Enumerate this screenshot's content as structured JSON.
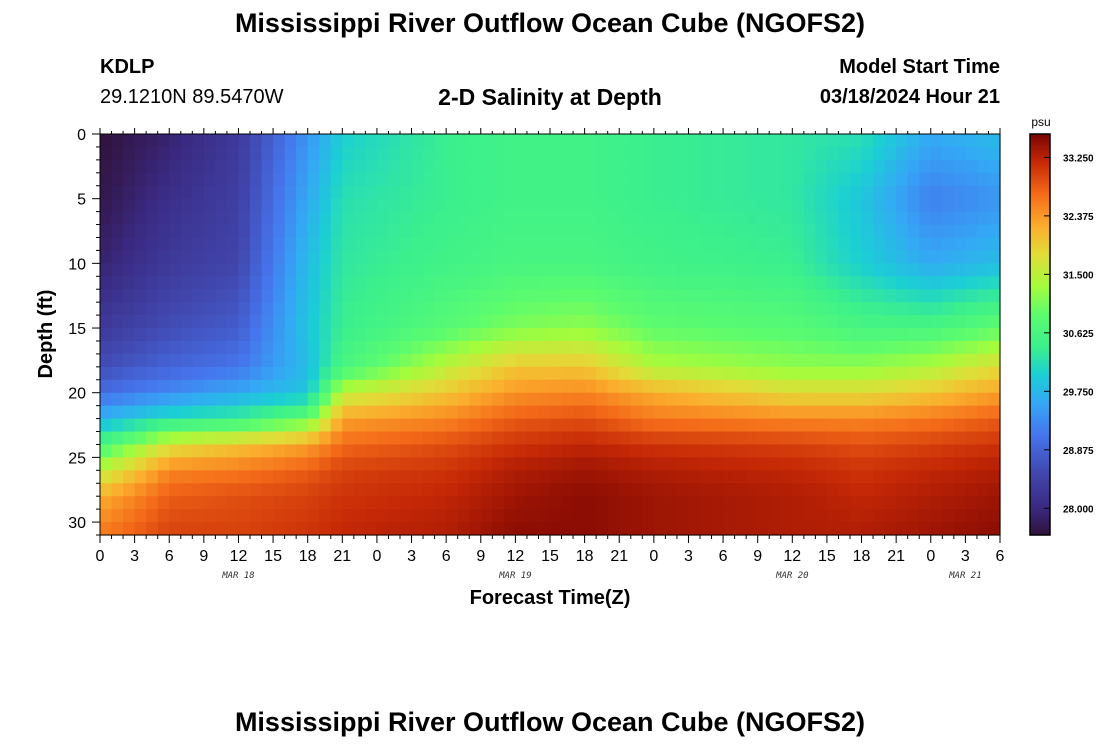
{
  "header": {
    "title": "Mississippi River Outflow Ocean Cube (NGOFS2)",
    "station_id": "KDLP",
    "station_coords": "29.1210N  89.5470W",
    "subtitle": "2-D Salinity at Depth",
    "model_start_label": "Model Start Time",
    "model_start_time": "03/18/2024 Hour 21"
  },
  "footer": {
    "title": "Mississippi River Outflow Ocean Cube (NGOFS2)"
  },
  "chart_data": {
    "type": "heatmap",
    "xlabel": "Forecast Time(Z)",
    "ylabel": "Depth (ft)",
    "x_hours_range": [
      0,
      78
    ],
    "x_tick_labels": [
      "0",
      "3",
      "6",
      "9",
      "12",
      "15",
      "18",
      "21",
      "0",
      "3",
      "6",
      "9",
      "12",
      "15",
      "18",
      "21",
      "0",
      "3",
      "6",
      "9",
      "12",
      "15",
      "18",
      "21",
      "0",
      "3",
      "6"
    ],
    "date_labels": [
      {
        "label": "MAR 18",
        "at_hour": 12
      },
      {
        "label": "MAR 19",
        "at_hour": 36
      },
      {
        "label": "MAR 20",
        "at_hour": 60
      },
      {
        "label": "MAR 21",
        "at_hour": 75
      }
    ],
    "y_range": [
      0,
      31
    ],
    "y_ticks": [
      0,
      5,
      10,
      15,
      20,
      25,
      30
    ],
    "colorbar": {
      "unit": "psu",
      "min": 27.6,
      "max": 33.6,
      "ticks": [
        "33.250",
        "32.375",
        "31.500",
        "30.625",
        "29.750",
        "28.875",
        "28.000"
      ]
    },
    "profile_depths_ft": [
      0,
      5,
      10,
      15,
      18,
      20,
      22,
      24,
      26,
      28,
      31
    ],
    "salinity_profiles": [
      {
        "hour": 0,
        "values": [
          27.6,
          27.7,
          27.9,
          28.3,
          28.6,
          29.0,
          29.7,
          30.6,
          31.5,
          32.2,
          32.6
        ]
      },
      {
        "hour": 6,
        "values": [
          27.9,
          28.1,
          28.3,
          28.6,
          28.9,
          29.3,
          30.2,
          31.7,
          32.5,
          32.8,
          33.0
        ]
      },
      {
        "hour": 12,
        "values": [
          28.3,
          28.4,
          28.5,
          28.8,
          29.1,
          29.6,
          30.4,
          32.0,
          32.6,
          32.9,
          33.0
        ]
      },
      {
        "hour": 18,
        "values": [
          29.4,
          29.6,
          29.8,
          29.9,
          29.8,
          29.9,
          30.9,
          32.3,
          32.8,
          33.0,
          33.1
        ]
      },
      {
        "hour": 21,
        "values": [
          30.0,
          30.2,
          30.3,
          30.4,
          30.6,
          31.5,
          32.3,
          32.7,
          33.0,
          33.1,
          33.2
        ]
      },
      {
        "hour": 30,
        "values": [
          30.4,
          30.4,
          30.5,
          30.8,
          31.5,
          32.0,
          32.5,
          32.9,
          33.1,
          33.2,
          33.3
        ]
      },
      {
        "hour": 36,
        "values": [
          30.5,
          30.5,
          30.6,
          31.1,
          32.0,
          32.4,
          32.8,
          33.1,
          33.3,
          33.4,
          33.5
        ]
      },
      {
        "hour": 42,
        "values": [
          30.5,
          30.5,
          30.6,
          31.2,
          32.0,
          32.5,
          32.9,
          33.2,
          33.4,
          33.5,
          33.5
        ]
      },
      {
        "hour": 48,
        "values": [
          30.4,
          30.4,
          30.5,
          30.9,
          31.4,
          32.2,
          32.6,
          33.1,
          33.3,
          33.4,
          33.4
        ]
      },
      {
        "hour": 60,
        "values": [
          30.3,
          30.3,
          30.4,
          30.8,
          31.2,
          31.8,
          32.5,
          33.0,
          33.2,
          33.3,
          33.3
        ]
      },
      {
        "hour": 66,
        "values": [
          30.2,
          29.9,
          30.0,
          30.6,
          31.2,
          31.8,
          32.5,
          32.9,
          33.1,
          33.2,
          33.3
        ]
      },
      {
        "hour": 72,
        "values": [
          29.6,
          29.2,
          29.6,
          30.6,
          31.4,
          32.0,
          32.6,
          33.0,
          33.2,
          33.3,
          33.4
        ]
      },
      {
        "hour": 78,
        "values": [
          29.8,
          29.4,
          29.8,
          30.9,
          31.8,
          32.3,
          32.8,
          33.1,
          33.3,
          33.4,
          33.5
        ]
      }
    ]
  }
}
